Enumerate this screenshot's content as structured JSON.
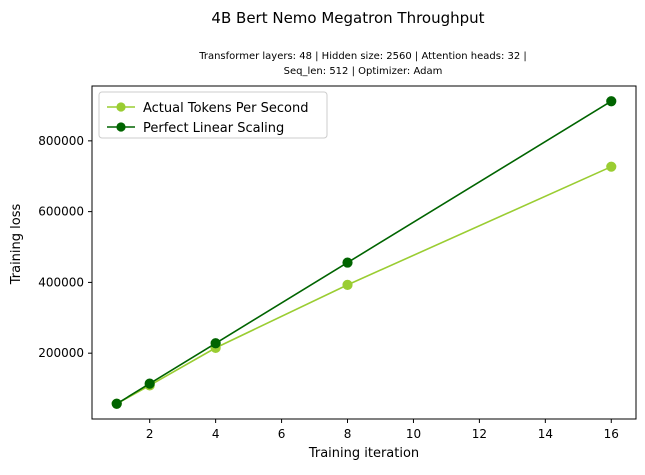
{
  "chart_data": {
    "type": "line",
    "title": "4B Bert Nemo Megatron Throughput",
    "subtitle_lines": [
      "Transformer layers: 48 | Hidden size: 2560 | Attention heads: 32 |",
      "Seq_len: 512 | Optimizer: Adam"
    ],
    "xlabel": "Training iteration",
    "ylabel": "Training loss",
    "x": [
      1,
      2,
      4,
      8,
      16
    ],
    "series": [
      {
        "name": "Actual Tokens Per Second",
        "color": "#9acd32",
        "values": [
          57000,
          109000,
          215000,
          393000,
          727000
        ]
      },
      {
        "name": "Perfect Linear Scaling",
        "color": "#006400",
        "values": [
          57000,
          114000,
          228000,
          456000,
          912000
        ]
      }
    ],
    "xlim": [
      0.25,
      16.75
    ],
    "ylim": [
      14000,
      955000
    ],
    "xticks": [
      2,
      4,
      6,
      8,
      10,
      12,
      14,
      16
    ],
    "yticks": [
      200000,
      400000,
      600000,
      800000
    ],
    "grid": false,
    "legend_position": "upper-left"
  }
}
